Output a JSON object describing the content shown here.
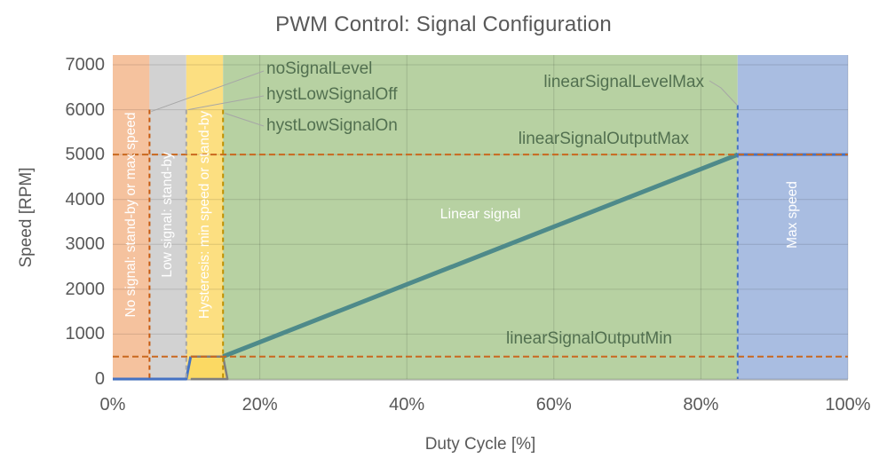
{
  "chart_data": {
    "type": "line",
    "title": "PWM Control: Signal Configuration",
    "xlabel": "Duty Cycle [%]",
    "ylabel": "Speed [RPM]",
    "xlim": [
      0,
      100
    ],
    "ylim": [
      0,
      7000
    ],
    "grid": true,
    "x_ticks": [
      {
        "value": 0,
        "label": "0%"
      },
      {
        "value": 20,
        "label": "20%"
      },
      {
        "value": 40,
        "label": "40%"
      },
      {
        "value": 60,
        "label": "60%"
      },
      {
        "value": 80,
        "label": "80%"
      },
      {
        "value": 100,
        "label": "100%"
      }
    ],
    "y_ticks": [
      {
        "value": 0,
        "label": "0"
      },
      {
        "value": 1000,
        "label": "1000"
      },
      {
        "value": 2000,
        "label": "2000"
      },
      {
        "value": 3000,
        "label": "3000"
      },
      {
        "value": 4000,
        "label": "4000"
      },
      {
        "value": 5000,
        "label": "5000"
      },
      {
        "value": 6000,
        "label": "6000"
      },
      {
        "value": 7000,
        "label": "7000"
      }
    ],
    "regions": [
      {
        "name": "no-signal",
        "label": "No signal: stand-by or max speed",
        "x0": 0,
        "x1": 5,
        "color": "#f5c29e",
        "label_rotated": true
      },
      {
        "name": "low-signal",
        "label": "Low signal: stand-by",
        "x0": 5,
        "x1": 10,
        "color": "#d2d2d2",
        "label_rotated": true
      },
      {
        "name": "hysteresis",
        "label": "Hysteresis: min speed or stand-by",
        "x0": 10,
        "x1": 15,
        "color": "#fcdf81",
        "label_rotated": true
      },
      {
        "name": "linear",
        "label": "Linear signal",
        "x0": 15,
        "x1": 85,
        "color": "#b7d1a2",
        "label_rotated": false
      },
      {
        "name": "max-speed",
        "label": "Max speed",
        "x0": 85,
        "x1": 100,
        "color": "#a9bde1",
        "label_rotated": true
      }
    ],
    "hysteresis_fill": {
      "color": "#fbd963",
      "points": [
        [
          10,
          0
        ],
        [
          10.6,
          500
        ],
        [
          15,
          500
        ],
        [
          15.6,
          0
        ]
      ]
    },
    "series": [
      {
        "name": "low-signal-path",
        "color": "#4472c4",
        "width": 3,
        "points": [
          [
            0,
            0
          ],
          [
            10,
            0
          ],
          [
            10.6,
            500
          ]
        ]
      },
      {
        "name": "hysteresis-loop",
        "color": "#7f7f7f",
        "width": 2.5,
        "points": [
          [
            10.6,
            500
          ],
          [
            15,
            500
          ],
          [
            15.6,
            0
          ],
          [
            10.6,
            0
          ]
        ]
      },
      {
        "name": "linear-signal-line",
        "color": "#4e8a8a",
        "width": 5,
        "points": [
          [
            15,
            500
          ],
          [
            85,
            5000
          ]
        ]
      },
      {
        "name": "max-speed-line",
        "color": "#4472c4",
        "width": 3,
        "points": [
          [
            85,
            5000
          ],
          [
            100,
            5000
          ]
        ]
      }
    ],
    "reference_lines": [
      {
        "axis": "y",
        "value": 5000,
        "label": "linearSignalOutputMax",
        "color": "#c9681f"
      },
      {
        "axis": "y",
        "value": 500,
        "label": "linearSignalOutputMin",
        "color": "#c9681f"
      },
      {
        "axis": "x",
        "value": 5,
        "label": "noSignalLevel",
        "color": "#c55a11",
        "top": 6000
      },
      {
        "axis": "x",
        "value": 10,
        "label": "hystLowSignalOff",
        "color": "#a6a6a6",
        "top": 6000
      },
      {
        "axis": "x",
        "value": 15,
        "label": "hystLowSignalOn",
        "color": "#bf9000",
        "top": 6000
      },
      {
        "axis": "x",
        "value": 85,
        "label": "linearSignalLevelMax",
        "color": "#4472c4",
        "top": 6100
      }
    ]
  },
  "colors": {
    "title_text": "#595959",
    "callout_text": "#527050",
    "gridline": "rgba(0,0,0,0.13)",
    "axis_line": "#b3b3b3",
    "leader_line": "#a6a6a6",
    "background": "#ffffff"
  }
}
